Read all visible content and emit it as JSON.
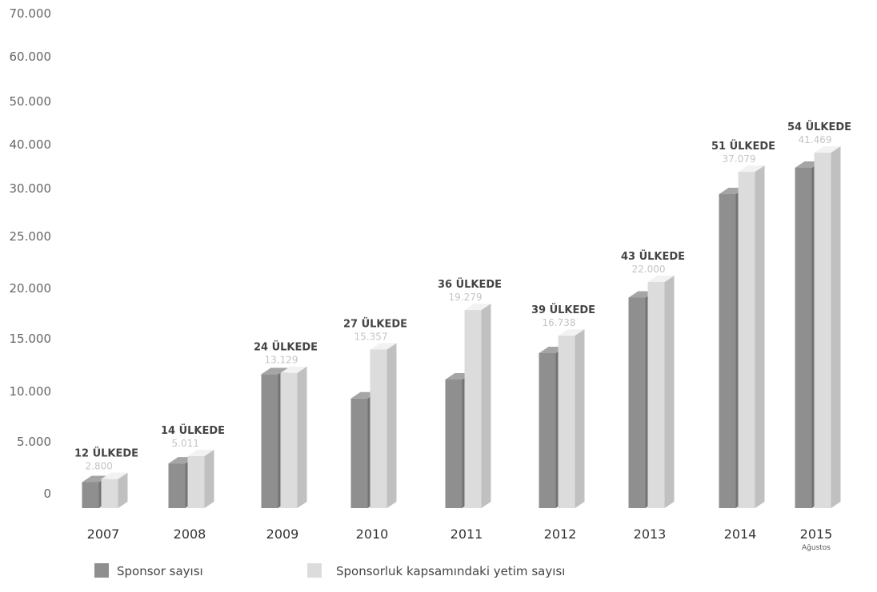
{
  "chart_data": {
    "type": "bar",
    "title": "",
    "xlabel": "",
    "ylabel": "",
    "categories": [
      "2007",
      "2008",
      "2009",
      "2010",
      "2011",
      "2012",
      "2013",
      "2014",
      "2015"
    ],
    "category_sublabels": [
      "",
      "",
      "",
      "",
      "",
      "",
      "",
      "",
      "Ağustos"
    ],
    "y_tick_labels": [
      "0",
      "5.000",
      "10.000",
      "15.000",
      "20.000",
      "25.000",
      "30.000",
      "40.000",
      "50.000",
      "60.000",
      "70.000"
    ],
    "y_tick_values": [
      0,
      5000,
      10000,
      15000,
      20000,
      25000,
      30000,
      40000,
      50000,
      60000,
      70000
    ],
    "country_labels": [
      "12 ÜLKEDE",
      "14 ÜLKEDE",
      "24 ÜLKEDE",
      "27 ÜLKEDE",
      "36 ÜLKEDE",
      "39 ÜLKEDE",
      "43 ÜLKEDE",
      "51 ÜLKEDE",
      "54 ÜLKEDE"
    ],
    "value_labels": [
      "2.800",
      "5.011",
      "13.129",
      "15.357",
      "19.279",
      "16.738",
      "22.000",
      "37.079",
      "41.469"
    ],
    "series": [
      {
        "name": "Sponsor sayısı",
        "color": "#8f8f8f",
        "values": [
          2500,
          4300,
          13000,
          10700,
          12500,
          15000,
          20500,
          32000,
          38000
        ]
      },
      {
        "name": "Sponsorluk kapsamındaki yetim sayısı",
        "color": "#dcdcdc",
        "values": [
          2800,
          5011,
          13129,
          15357,
          19279,
          16738,
          22000,
          37079,
          41469
        ]
      }
    ],
    "legend": {
      "position": "bottom-left"
    }
  }
}
